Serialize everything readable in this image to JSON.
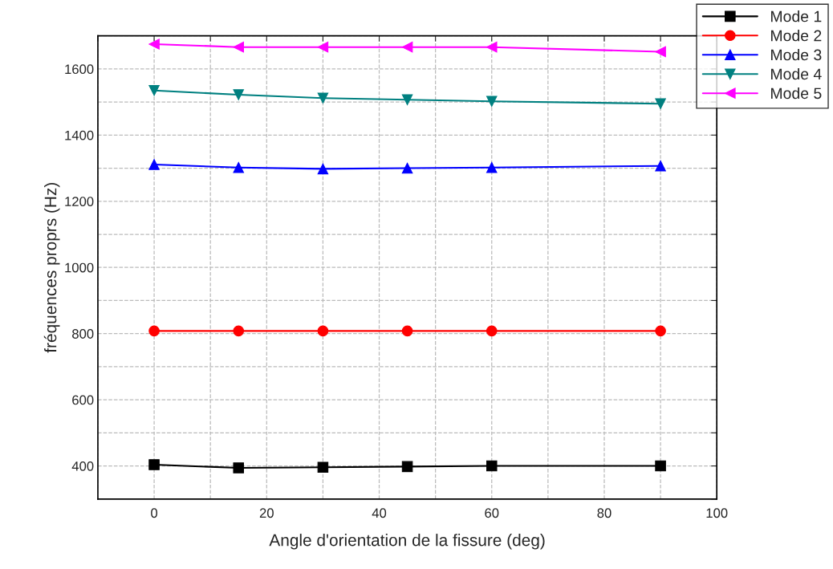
{
  "chart_data": {
    "type": "line",
    "xlabel": "Angle d'orientation de la fissure (deg)",
    "ylabel": "fréquences proprs (Hz)",
    "x": [
      0,
      15,
      30,
      45,
      60,
      90
    ],
    "series": [
      {
        "name": "Mode 1",
        "color": "#000000",
        "marker": "square",
        "values": [
          404,
          394,
          396,
          398,
          400,
          400
        ]
      },
      {
        "name": "Mode 2",
        "color": "#ff0000",
        "marker": "circle",
        "values": [
          808,
          808,
          808,
          808,
          808,
          808
        ]
      },
      {
        "name": "Mode 3",
        "color": "#0000ff",
        "marker": "triangle",
        "values": [
          1311,
          1302,
          1298,
          1300,
          1302,
          1307
        ]
      },
      {
        "name": "Mode 4",
        "color": "#008080",
        "marker": "triangle_down",
        "values": [
          1535,
          1522,
          1512,
          1507,
          1502,
          1495
        ]
      },
      {
        "name": "Mode 5",
        "color": "#ff00ff",
        "marker": "triangle_left",
        "values": [
          1675,
          1666,
          1666,
          1666,
          1666,
          1652
        ]
      }
    ],
    "xlim": [
      -10,
      100
    ],
    "ylim": [
      300,
      1700
    ],
    "xticks": [
      {
        "value": -10,
        "label": null
      },
      0,
      {
        "value": 10,
        "label": null
      },
      20,
      {
        "value": 30,
        "label": null
      },
      40,
      {
        "value": 50,
        "label": null
      },
      60,
      {
        "value": 70,
        "label": null
      },
      80,
      {
        "value": 90,
        "label": null
      },
      100
    ],
    "yticks": [
      {
        "value": 300,
        "label": null
      },
      400,
      {
        "value": 500,
        "label": null
      },
      600,
      {
        "value": 700,
        "label": null
      },
      800,
      {
        "value": 900,
        "label": null
      },
      1000,
      {
        "value": 1100,
        "label": null
      },
      1200,
      {
        "value": 1300,
        "label": null
      },
      1400,
      {
        "value": 1500,
        "label": null
      },
      1600,
      {
        "value": 1700,
        "label": null
      }
    ],
    "grid": true,
    "legend": "top right",
    "line_style": "solid"
  }
}
